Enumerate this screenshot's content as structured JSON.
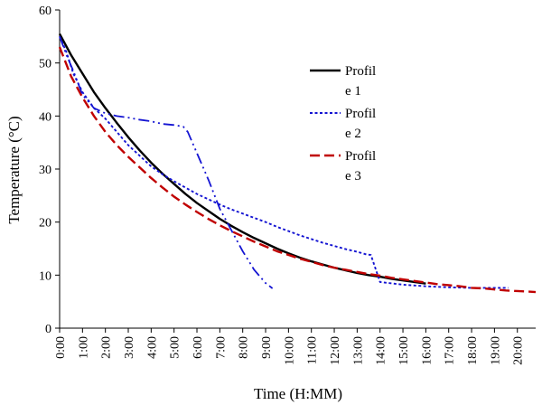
{
  "chart_data": {
    "type": "line",
    "xlabel": "Time (H:MM)",
    "ylabel": "Temperature (°C)",
    "xlim": [
      0,
      20.8
    ],
    "ylim": [
      0,
      60
    ],
    "x_ticks": [
      0,
      1,
      2,
      3,
      4,
      5,
      6,
      7,
      8,
      9,
      10,
      11,
      12,
      13,
      14,
      15,
      16,
      17,
      18,
      19,
      20
    ],
    "x_tick_labels": [
      "0:00",
      "1:00",
      "2:00",
      "3:00",
      "4:00",
      "5:00",
      "6:00",
      "7:00",
      "8:00",
      "9:00",
      "10:00",
      "11:00",
      "12:00",
      "13:00",
      "14:00",
      "15:00",
      "16:00",
      "17:00",
      "18:00",
      "19:00",
      "20:00"
    ],
    "y_ticks": [
      0,
      10,
      20,
      30,
      40,
      50,
      60
    ],
    "y_tick_labels": [
      "0",
      "10",
      "20",
      "30",
      "40",
      "50",
      "60"
    ],
    "grid": false,
    "legend_position": "top-right",
    "series": [
      {
        "name_lines": [
          "Profil",
          "e 1"
        ],
        "color": "#000000",
        "style": "solid",
        "x": [
          0,
          0.5,
          1,
          1.5,
          2,
          2.5,
          3,
          3.5,
          4,
          4.5,
          5,
          5.5,
          6,
          6.5,
          7,
          7.5,
          8,
          8.5,
          9,
          9.5,
          10,
          10.5,
          11,
          11.5,
          12,
          12.5,
          13,
          13.5,
          14,
          14.5,
          15,
          15.5,
          16
        ],
        "y": [
          55.5,
          51.5,
          48,
          44.5,
          41.5,
          38.7,
          36,
          33.5,
          31.2,
          29.1,
          27.2,
          25.3,
          23.6,
          22.1,
          20.6,
          19.3,
          18.1,
          17,
          16,
          15,
          14.1,
          13.3,
          12.6,
          12,
          11.4,
          10.9,
          10.4,
          10,
          9.7,
          9.3,
          9,
          8.7,
          8.4
        ]
      },
      {
        "name_lines": [
          "Profil",
          "e 2"
        ],
        "color": "#1414d2",
        "style": "dotted",
        "x": [
          0,
          0.3,
          0.6,
          1,
          1.5,
          2,
          2.5,
          3,
          3.5,
          4,
          4.5,
          5,
          5.5,
          6,
          6.5,
          7,
          7.5,
          8,
          8.5,
          9,
          9.5,
          10,
          10.5,
          11,
          11.5,
          12,
          12.5,
          13,
          13.4,
          13.6,
          14,
          15,
          16,
          17,
          18,
          19,
          19.6
        ],
        "y": [
          55,
          52,
          48,
          44.5,
          41.5,
          39.5,
          37,
          34.5,
          32.5,
          30.5,
          29,
          27.7,
          26.5,
          25.3,
          24.3,
          23.3,
          22.4,
          21.6,
          20.8,
          20,
          19.1,
          18.3,
          17.5,
          16.8,
          16.1,
          15.5,
          14.9,
          14.4,
          13.9,
          13.8,
          8.7,
          8.2,
          7.9,
          7.7,
          7.6,
          7.6,
          7.6
        ]
      },
      {
        "name_lines": [
          "Profil",
          "e 3"
        ],
        "color": "#c00000",
        "style": "dashed",
        "x": [
          0,
          0.5,
          1,
          1.5,
          2,
          2.5,
          3,
          3.5,
          4,
          4.5,
          5,
          5.5,
          6,
          6.5,
          7,
          7.5,
          8,
          8.5,
          9,
          9.5,
          10,
          10.5,
          11,
          11.5,
          12,
          12.5,
          13,
          13.5,
          14,
          14.5,
          15,
          15.5,
          16,
          16.5,
          17,
          17.5,
          18,
          18.5,
          19,
          19.5,
          20,
          20.5,
          20.8
        ],
        "y": [
          53,
          47.5,
          43.5,
          40,
          37,
          34.5,
          32.3,
          30.3,
          28.3,
          26.5,
          24.8,
          23.3,
          21.9,
          20.6,
          19.4,
          18.3,
          17.3,
          16.3,
          15.4,
          14.5,
          13.8,
          13.1,
          12.5,
          11.9,
          11.4,
          11,
          10.6,
          10.2,
          9.9,
          9.5,
          9.2,
          8.9,
          8.6,
          8.3,
          8.1,
          7.9,
          7.6,
          7.5,
          7.3,
          7.1,
          7,
          6.9,
          6.8
        ]
      },
      {
        "name_lines": [],
        "color": "#1414d2",
        "style": "dashdotdot",
        "x": [
          0,
          0.3,
          0.6,
          1,
          1.5,
          2,
          2.5,
          3,
          3.5,
          4,
          4.5,
          5,
          5.4,
          5.6,
          6,
          6.5,
          7,
          7.5,
          8,
          8.5,
          9,
          9.3
        ],
        "y": [
          55,
          51.5,
          48.5,
          44,
          41.5,
          40.5,
          40,
          39.7,
          39.3,
          39,
          38.5,
          38.3,
          38,
          37,
          33,
          28,
          22.5,
          18.5,
          14.5,
          11,
          8.5,
          7.5
        ]
      }
    ]
  }
}
